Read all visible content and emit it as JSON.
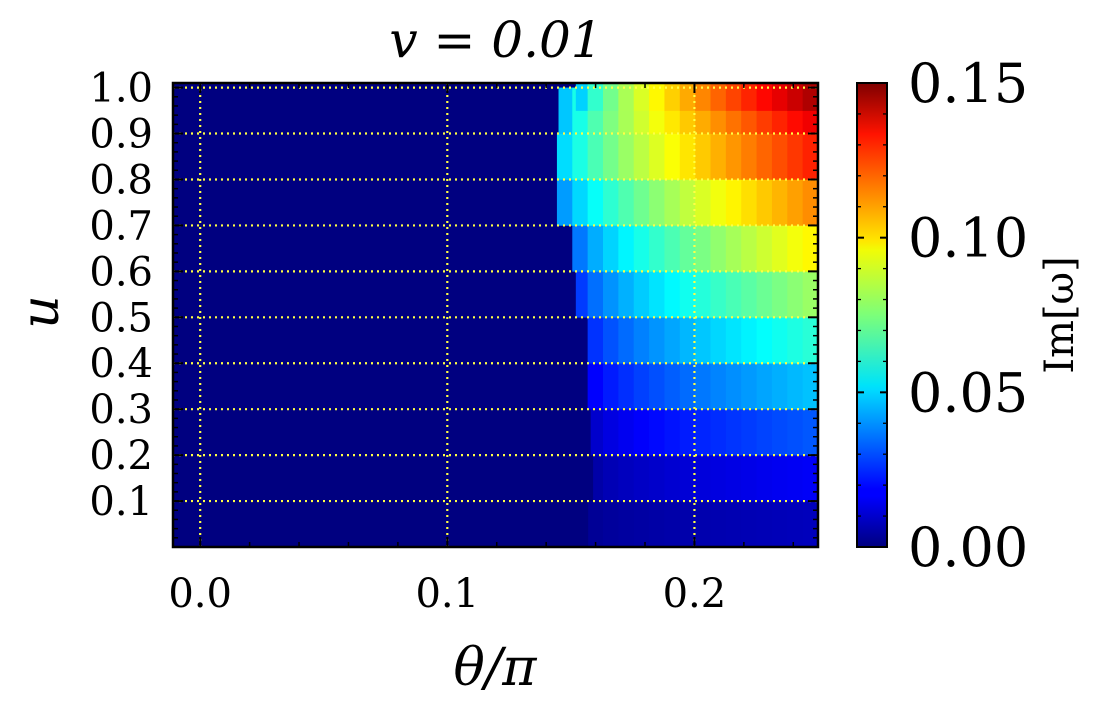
{
  "chart_data": {
    "type": "heatmap",
    "title": "v = 0.01",
    "xlabel": "θ/π",
    "ylabel": "u",
    "xlim": [
      -0.011,
      0.25
    ],
    "ylim": [
      0.0,
      1.01
    ],
    "x_ticks": [
      0.0,
      0.1,
      0.2
    ],
    "x_tick_labels": [
      "0.0",
      "0.1",
      "0.2"
    ],
    "y_ticks": [
      0.1,
      0.2,
      0.3,
      0.4,
      0.5,
      0.6,
      0.7,
      0.8,
      0.9,
      1.0
    ],
    "y_tick_labels": [
      "0.1",
      "0.2",
      "0.3",
      "0.4",
      "0.5",
      "0.6",
      "0.7",
      "0.8",
      "0.9",
      "1.0"
    ],
    "grid": true,
    "grid_style": "dotted",
    "grid_color": "#ffff44",
    "colormap": "jet",
    "colorbar": {
      "label": "Im[ω]",
      "range": [
        0.0,
        0.15
      ],
      "ticks": [
        0.0,
        0.05,
        0.1,
        0.15
      ],
      "tick_labels": [
        "0.00",
        "0.05",
        "0.10",
        "0.15"
      ]
    },
    "rows": [
      {
        "u": 0.05,
        "theta_onset": 0.157,
        "max_value": 0.009
      },
      {
        "u": 0.15,
        "theta_onset": 0.159,
        "max_value": 0.018
      },
      {
        "u": 0.25,
        "theta_onset": 0.158,
        "max_value": 0.032
      },
      {
        "u": 0.35,
        "theta_onset": 0.156,
        "max_value": 0.048
      },
      {
        "u": 0.45,
        "theta_onset": 0.154,
        "max_value": 0.063
      },
      {
        "u": 0.55,
        "theta_onset": 0.152,
        "max_value": 0.08
      },
      {
        "u": 0.65,
        "theta_onset": 0.15,
        "max_value": 0.096
      },
      {
        "u": 0.75,
        "theta_onset": 0.144,
        "max_value": 0.112
      },
      {
        "u": 0.85,
        "theta_onset": 0.142,
        "max_value": 0.128
      },
      {
        "u": 0.95,
        "theta_onset": 0.145,
        "max_value": 0.135
      },
      {
        "u": 1.0,
        "theta_onset": 0.152,
        "max_value": 0.145
      }
    ]
  }
}
